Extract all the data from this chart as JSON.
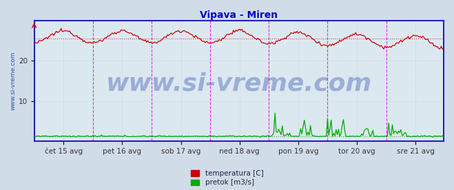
{
  "title": "Vipava - Miren",
  "title_color": "#0000cc",
  "title_fontsize": 10,
  "bg_color": "#d0dce8",
  "plot_bg_color": "#dce8f0",
  "grid_color": "#b8c8d8",
  "grid_linestyle": "dotted",
  "axis_color": "#2222bb",
  "x_tick_labels": [
    "čet 15 avg",
    "pet 16 avg",
    "sob 17 avg",
    "ned 18 avg",
    "pon 19 avg",
    "tor 20 avg",
    "sre 21 avg"
  ],
  "x_tick_positions": [
    24,
    72,
    120,
    168,
    216,
    264,
    312
  ],
  "vline_positions": [
    0,
    48,
    96,
    144,
    192,
    240,
    288,
    335
  ],
  "vline_color_magenta": "#ff00ff",
  "vline_color_first": "#333388",
  "ylim": [
    0,
    30
  ],
  "xlim": [
    0,
    335
  ],
  "y_ticks": [
    10,
    20
  ],
  "total_points": 336,
  "temp_color": "#cc0000",
  "temp_avg_color": "#cc4444",
  "temp_avg_value": 25.5,
  "flow_color": "#00aa00",
  "flow_avg_color": "#44aa44",
  "flow_avg_value": 1.2,
  "watermark": "www.si-vreme.com",
  "watermark_color": "#2244aa",
  "watermark_alpha": 0.35,
  "watermark_fontsize": 26,
  "legend_temp_label": "temperatura [C]",
  "legend_flow_label": "pretok [m3/s]",
  "ylabel_text": "www.si-vreme.com",
  "ylabel_color": "#3355aa",
  "ylabel_fontsize": 6.5,
  "tick_fontsize": 7.5,
  "arrow_color": "#cc0000"
}
